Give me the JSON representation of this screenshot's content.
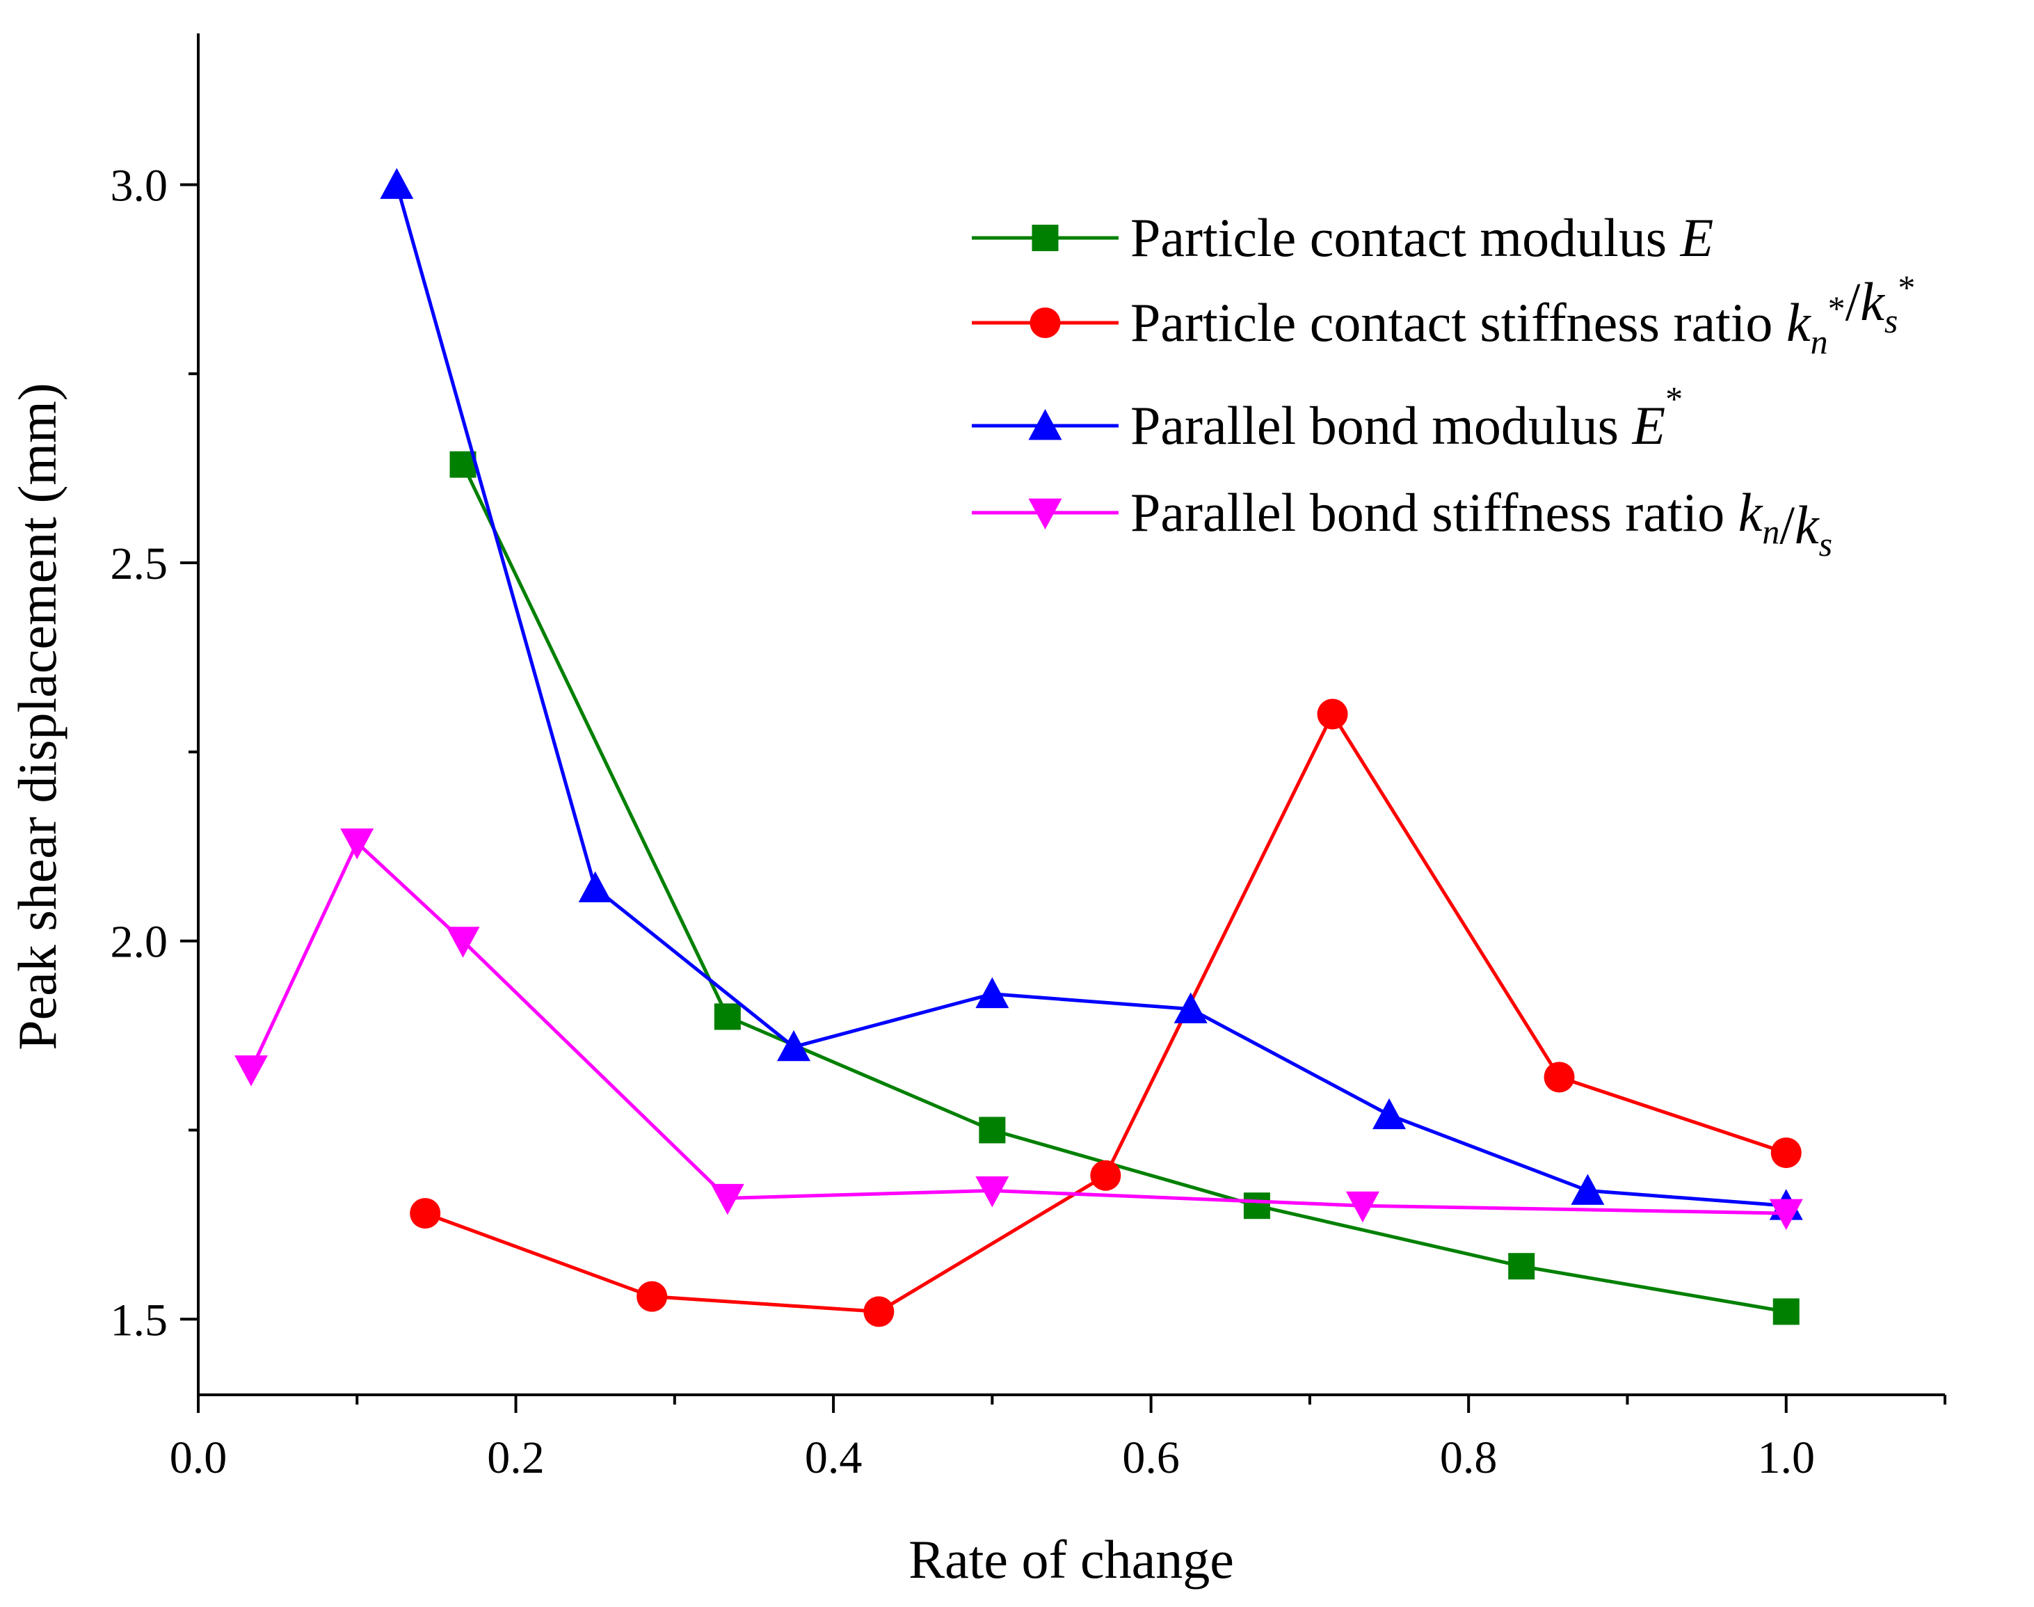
{
  "chart_data": {
    "type": "line",
    "title": "",
    "xlabel": "Rate of change",
    "ylabel": "Peak shear displacement (mm)",
    "xlim": [
      0.0,
      1.1
    ],
    "ylim": [
      1.4,
      3.2
    ],
    "xticks": [
      0.0,
      0.2,
      0.4,
      0.6,
      0.8,
      1.0
    ],
    "xtick_labels": [
      "0.0",
      "0.2",
      "0.4",
      "0.6",
      "0.8",
      "1.0"
    ],
    "yticks": [
      1.5,
      2.0,
      2.5,
      3.0
    ],
    "ytick_labels": [
      "1.5",
      "2.0",
      "2.5",
      "3.0"
    ],
    "grid": false,
    "legend_position": "top-right",
    "series": [
      {
        "name": "Particle contact modulus E",
        "legend_parts": [
          {
            "text": "Particle contact modulus ",
            "style": "normal"
          },
          {
            "text": "E",
            "style": "italic"
          }
        ],
        "color": "#008000",
        "marker": "square",
        "x": [
          0.1667,
          0.3333,
          0.5,
          0.6667,
          0.8333,
          1.0
        ],
        "y": [
          2.63,
          1.9,
          1.75,
          1.65,
          1.57,
          1.51
        ]
      },
      {
        "name": "Particle contact stiffness ratio kn*/ks*",
        "legend_parts": [
          {
            "text": "Particle contact stiffness ratio ",
            "style": "normal"
          },
          {
            "text": "k",
            "style": "italic"
          },
          {
            "text": "n",
            "style": "sub"
          },
          {
            "text": "*",
            "style": "sup"
          },
          {
            "text": "/",
            "style": "normal"
          },
          {
            "text": "k",
            "style": "italic"
          },
          {
            "text": "s",
            "style": "sub"
          },
          {
            "text": "*",
            "style": "sup"
          }
        ],
        "color": "#ff0000",
        "marker": "circle",
        "x": [
          0.1429,
          0.2857,
          0.4286,
          0.5714,
          0.7143,
          0.8571,
          1.0
        ],
        "y": [
          1.64,
          1.53,
          1.51,
          1.69,
          2.3,
          1.82,
          1.72
        ]
      },
      {
        "name": "Parallel bond modulus E*",
        "legend_parts": [
          {
            "text": "Parallel bond modulus ",
            "style": "normal"
          },
          {
            "text": "E",
            "style": "italic"
          },
          {
            "text": "*",
            "style": "sup"
          }
        ],
        "color": "#0000ff",
        "marker": "triangle-up",
        "x": [
          0.125,
          0.25,
          0.375,
          0.5,
          0.625,
          0.75,
          0.875,
          1.0
        ],
        "y": [
          3.0,
          2.07,
          1.86,
          1.93,
          1.91,
          1.77,
          1.67,
          1.65
        ]
      },
      {
        "name": "Parallel bond stiffness ratio kn/ks",
        "legend_parts": [
          {
            "text": "Parallel bond stiffness ratio ",
            "style": "normal"
          },
          {
            "text": "k",
            "style": "italic"
          },
          {
            "text": "n",
            "style": "sub"
          },
          {
            "text": "/",
            "style": "normal"
          },
          {
            "text": "k",
            "style": "italic"
          },
          {
            "text": "s",
            "style": "sub"
          }
        ],
        "color": "#ff00ff",
        "marker": "triangle-down",
        "x": [
          0.0333,
          0.1,
          0.1667,
          0.3333,
          0.5,
          0.7333,
          1.0
        ],
        "y": [
          1.83,
          2.13,
          2.0,
          1.66,
          1.67,
          1.65,
          1.64
        ]
      }
    ]
  }
}
